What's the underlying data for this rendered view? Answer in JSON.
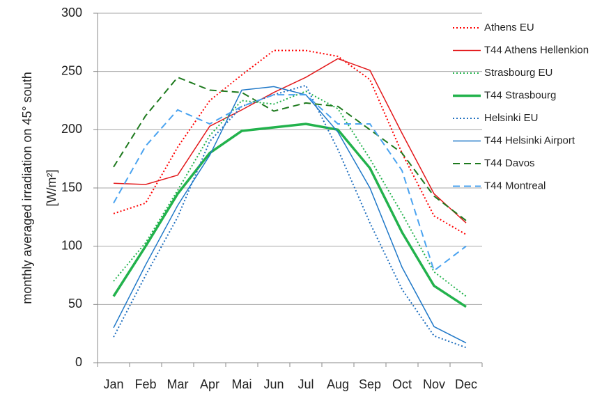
{
  "chart_data": {
    "type": "line",
    "y_label": [
      "monthly averaged irradiation on 45° south",
      "[W/m²]"
    ],
    "categories": [
      "Jan",
      "Feb",
      "Mar",
      "Apr",
      "Mai",
      "Jun",
      "Jul",
      "Aug",
      "Sep",
      "Oct",
      "Nov",
      "Dec"
    ],
    "ylim": [
      0,
      300
    ],
    "yticks": [
      0,
      50,
      100,
      150,
      200,
      250,
      300
    ],
    "grid": true,
    "legend": "top-right",
    "series": [
      {
        "name": "Athens EU",
        "color": "#ff0000",
        "dash": "dotted",
        "width": 2,
        "values": [
          128,
          137,
          185,
          225,
          247,
          268,
          268,
          263,
          243,
          180,
          126,
          110
        ]
      },
      {
        "name": "T44 Athens Hellenkion",
        "color": "#e3191b",
        "dash": "solid",
        "width": 1.5,
        "values": [
          154,
          153,
          161,
          203,
          217,
          232,
          245,
          261,
          251,
          197,
          145,
          120
        ]
      },
      {
        "name": "Strasbourg EU",
        "color": "#22b24c",
        "dash": "dotted",
        "width": 2,
        "values": [
          70,
          103,
          148,
          195,
          225,
          222,
          233,
          218,
          175,
          128,
          78,
          57
        ]
      },
      {
        "name": "T44 Strasbourg",
        "color": "#22b24c",
        "dash": "solid",
        "width": 3.5,
        "values": [
          57,
          100,
          145,
          180,
          199,
          202,
          205,
          200,
          167,
          112,
          66,
          48
        ]
      },
      {
        "name": "Helsinki EU",
        "color": "#1f6fbf",
        "dash": "dotted",
        "width": 2,
        "values": [
          22,
          75,
          125,
          190,
          220,
          230,
          238,
          183,
          120,
          63,
          23,
          13
        ]
      },
      {
        "name": "T44 Helsinki Airport",
        "color": "#1f78c8",
        "dash": "solid",
        "width": 1.5,
        "values": [
          30,
          84,
          135,
          178,
          234,
          237,
          230,
          198,
          150,
          82,
          31,
          17
        ]
      },
      {
        "name": "T44 Davos",
        "color": "#1e7a1e",
        "dash": "dashed",
        "width": 2,
        "values": [
          168,
          212,
          245,
          234,
          232,
          216,
          223,
          220,
          200,
          180,
          143,
          122
        ]
      },
      {
        "name": "T44 Montreal",
        "color": "#4aa3f0",
        "dash": "dashed",
        "width": 2,
        "values": [
          137,
          186,
          217,
          205,
          220,
          230,
          230,
          205,
          205,
          165,
          79,
          100
        ]
      }
    ]
  }
}
